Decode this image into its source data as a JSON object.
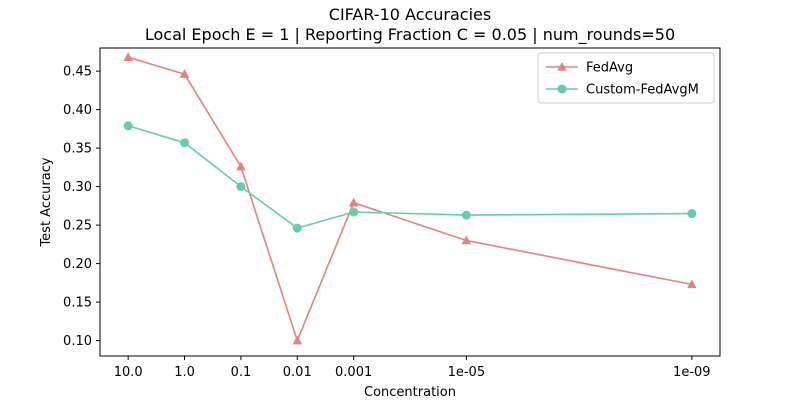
{
  "chart_data": {
    "type": "line",
    "title": "CIFAR-10 Accuracies",
    "subtitle": "Local Epoch E = 1 | Reporting Fraction C = 0.05 | num_rounds=50",
    "xlabel": "Concentration",
    "ylabel": "Test Accuracy",
    "x_scale": "log",
    "x": [
      10.0,
      1.0,
      0.1,
      0.01,
      0.001,
      1e-05,
      1e-09
    ],
    "x_tick_labels": [
      "10.0",
      "1.0",
      "0.1",
      "0.01",
      "0.001",
      "1e-05",
      "1e-09"
    ],
    "x_positions": [
      0,
      1,
      2,
      3,
      4,
      6,
      10
    ],
    "ylim": [
      0.08,
      0.48
    ],
    "y_ticks": [
      0.1,
      0.15,
      0.2,
      0.25,
      0.3,
      0.35,
      0.4,
      0.45
    ],
    "y_tick_labels": [
      "0.10",
      "0.15",
      "0.20",
      "0.25",
      "0.30",
      "0.35",
      "0.40",
      "0.45"
    ],
    "grid": false,
    "legend": "top-right",
    "series": [
      {
        "name": "FedAvg",
        "color": "#e8807d",
        "marker": "triangle",
        "values": [
          0.468,
          0.446,
          0.326,
          0.1,
          0.279,
          0.23,
          0.173
        ]
      },
      {
        "name": "Custom-FedAvgM",
        "color": "#66cdaa",
        "marker": "circle",
        "values": [
          0.379,
          0.357,
          0.3,
          0.246,
          0.267,
          0.263,
          0.265
        ]
      }
    ]
  }
}
